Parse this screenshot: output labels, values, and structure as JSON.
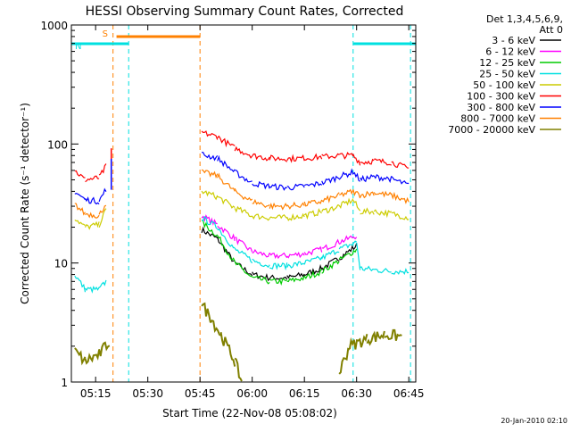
{
  "chart_data": {
    "type": "line",
    "title": "HESSI Observing Summary Count Rates, Corrected",
    "xlabel": "Start Time (22-Nov-08 05:08:02)",
    "ylabel": "Corrected Count Rate (s⁻¹ detector⁻¹)",
    "yscale": "log",
    "ylim": [
      1,
      1000
    ],
    "xlim": [
      "05:08:02",
      "06:47:00"
    ],
    "x_ticks": [
      "05:15",
      "05:30",
      "05:45",
      "06:00",
      "06:15",
      "06:30",
      "06:45"
    ],
    "y_ticks": [
      "1",
      "10",
      "100",
      "1000"
    ],
    "legend_header": [
      "Det 1,3,4,5,6,9,",
      "Att 0"
    ],
    "date_stamp": "20-Jan-2010 02:10",
    "grid": false,
    "legend_position": "right",
    "flags": [
      {
        "label": "S",
        "color": "#ff8000",
        "start": "05:21:00",
        "end": "05:45:00"
      },
      {
        "label": "N",
        "color": "#00e0e0",
        "start": "05:08:02",
        "end": "05:24:30"
      },
      {
        "label": "",
        "color": "#00e0e0",
        "start": "06:29:00",
        "end": "06:47:00"
      }
    ],
    "markers": [
      {
        "time": "05:20:00",
        "color": "#ff8000"
      },
      {
        "time": "05:24:30",
        "color": "#00e0e0"
      },
      {
        "time": "05:45:00",
        "color": "#ff8000"
      },
      {
        "time": "06:29:00",
        "color": "#00e0e0"
      },
      {
        "time": "06:45:30",
        "color": "#00e0e0"
      }
    ],
    "series": [
      {
        "name": "3 - 6 keV",
        "color": "#000000",
        "points": [
          [
            "05:45:30",
            19
          ],
          [
            "05:50:00",
            16
          ],
          [
            "05:55:00",
            10
          ],
          [
            "06:00:00",
            8
          ],
          [
            "06:05:00",
            7.5
          ],
          [
            "06:10:00",
            7.5
          ],
          [
            "06:15:00",
            8
          ],
          [
            "06:20:00",
            9
          ],
          [
            "06:25:00",
            11
          ],
          [
            "06:30:00",
            14
          ]
        ]
      },
      {
        "name": "6 - 12 keV",
        "color": "#ff00ff",
        "points": [
          [
            "05:45:30",
            25
          ],
          [
            "05:50:00",
            21
          ],
          [
            "05:55:00",
            16
          ],
          [
            "06:00:00",
            12.5
          ],
          [
            "06:05:00",
            11.5
          ],
          [
            "06:10:00",
            11.5
          ],
          [
            "06:15:00",
            12
          ],
          [
            "06:20:00",
            13
          ],
          [
            "06:25:00",
            15
          ],
          [
            "06:30:00",
            17
          ]
        ]
      },
      {
        "name": "12 - 25 keV",
        "color": "#00cc00",
        "points": [
          [
            "05:45:30",
            22
          ],
          [
            "05:50:00",
            17
          ],
          [
            "05:55:00",
            10
          ],
          [
            "06:00:00",
            7.5
          ],
          [
            "06:05:00",
            7
          ],
          [
            "06:10:00",
            7
          ],
          [
            "06:15:00",
            7.5
          ],
          [
            "06:20:00",
            8.5
          ],
          [
            "06:25:00",
            10.5
          ],
          [
            "06:30:00",
            13
          ]
        ]
      },
      {
        "name": "25 - 50 keV",
        "color": "#00e0e0",
        "points": [
          [
            "05:09:00",
            8
          ],
          [
            "05:12:00",
            6
          ],
          [
            "05:16:00",
            6
          ],
          [
            "05:18:00",
            7
          ],
          [
            "05:45:30",
            24
          ],
          [
            "05:50:00",
            20
          ],
          [
            "05:55:00",
            13
          ],
          [
            "06:00:00",
            10.5
          ],
          [
            "06:05:00",
            9.5
          ],
          [
            "06:10:00",
            9.5
          ],
          [
            "06:15:00",
            10
          ],
          [
            "06:20:00",
            11
          ],
          [
            "06:25:00",
            13
          ],
          [
            "06:30:00",
            15
          ],
          [
            "06:31:00",
            9
          ],
          [
            "06:40:00",
            8.5
          ],
          [
            "06:45:00",
            8.5
          ]
        ]
      },
      {
        "name": "50 - 100 keV",
        "color": "#cccc00",
        "points": [
          [
            "05:09:00",
            24
          ],
          [
            "05:12:00",
            20
          ],
          [
            "05:16:00",
            21
          ],
          [
            "05:18:00",
            28
          ],
          [
            "05:45:30",
            40
          ],
          [
            "05:50:00",
            36
          ],
          [
            "05:55:00",
            29
          ],
          [
            "06:00:00",
            25
          ],
          [
            "06:05:00",
            24
          ],
          [
            "06:10:00",
            24
          ],
          [
            "06:15:00",
            25
          ],
          [
            "06:20:00",
            27
          ],
          [
            "06:25:00",
            30
          ],
          [
            "06:29:00",
            34
          ],
          [
            "06:31:00",
            27
          ],
          [
            "06:35:00",
            27
          ],
          [
            "06:40:00",
            26
          ],
          [
            "06:45:00",
            24
          ]
        ]
      },
      {
        "name": "100 - 300 keV",
        "color": "#ff0000",
        "points": [
          [
            "05:09:00",
            60
          ],
          [
            "05:12:00",
            50
          ],
          [
            "05:16:00",
            52
          ],
          [
            "05:18:00",
            65
          ],
          [
            "05:45:30",
            125
          ],
          [
            "05:50:00",
            115
          ],
          [
            "05:55:00",
            92
          ],
          [
            "06:00:00",
            80
          ],
          [
            "06:05:00",
            76
          ],
          [
            "06:10:00",
            75
          ],
          [
            "06:15:00",
            76
          ],
          [
            "06:20:00",
            78
          ],
          [
            "06:25:00",
            80
          ],
          [
            "06:29:00",
            80
          ],
          [
            "06:31:00",
            70
          ],
          [
            "06:35:00",
            72
          ],
          [
            "06:40:00",
            70
          ],
          [
            "06:45:00",
            62
          ]
        ]
      },
      {
        "name": "300 - 800 keV",
        "color": "#0000ff",
        "points": [
          [
            "05:09:00",
            40
          ],
          [
            "05:12:00",
            34
          ],
          [
            "05:16:00",
            33
          ],
          [
            "05:18:00",
            42
          ],
          [
            "05:45:30",
            82
          ],
          [
            "05:50:00",
            76
          ],
          [
            "05:55:00",
            58
          ],
          [
            "06:00:00",
            47
          ],
          [
            "06:05:00",
            44
          ],
          [
            "06:10:00",
            43
          ],
          [
            "06:15:00",
            44
          ],
          [
            "06:20:00",
            47
          ],
          [
            "06:25:00",
            53
          ],
          [
            "06:29:00",
            58
          ],
          [
            "06:31:00",
            50
          ],
          [
            "06:35:00",
            53
          ],
          [
            "06:40:00",
            51
          ],
          [
            "06:45:00",
            45
          ]
        ]
      },
      {
        "name": "800 - 7000 keV",
        "color": "#ff8000",
        "points": [
          [
            "05:09:00",
            31
          ],
          [
            "05:12:00",
            26
          ],
          [
            "05:16:00",
            25
          ],
          [
            "05:18:00",
            32
          ],
          [
            "05:45:30",
            58
          ],
          [
            "05:50:00",
            54
          ],
          [
            "05:55:00",
            40
          ],
          [
            "06:00:00",
            33
          ],
          [
            "06:05:00",
            30
          ],
          [
            "06:10:00",
            30
          ],
          [
            "06:15:00",
            31
          ],
          [
            "06:20:00",
            33
          ],
          [
            "06:25:00",
            37
          ],
          [
            "06:29:00",
            40
          ],
          [
            "06:31:00",
            37
          ],
          [
            "06:35:00",
            39
          ],
          [
            "06:40:00",
            37
          ],
          [
            "06:45:00",
            33
          ]
        ]
      },
      {
        "name": "7000 - 20000 keV",
        "color": "#808000",
        "points": [
          [
            "05:09:00",
            1.8
          ],
          [
            "05:12:00",
            1.5
          ],
          [
            "05:16:00",
            1.7
          ],
          [
            "05:19:00",
            2.2
          ],
          [
            "05:45:30",
            4.5
          ],
          [
            "05:48:00",
            3.5
          ],
          [
            "05:51:00",
            2.5
          ],
          [
            "05:55:00",
            1.5
          ],
          [
            "05:57:00",
            1.0
          ],
          [
            "06:25:00",
            1.2
          ],
          [
            "06:28:00",
            2.0
          ],
          [
            "06:33:00",
            2.3
          ],
          [
            "06:38:00",
            2.5
          ],
          [
            "06:43:00",
            2.4
          ]
        ]
      }
    ],
    "spikes": [
      {
        "series": 5,
        "time": "05:19:30",
        "value": 92
      },
      {
        "series": 6,
        "time": "05:19:30",
        "value": 75
      }
    ]
  }
}
